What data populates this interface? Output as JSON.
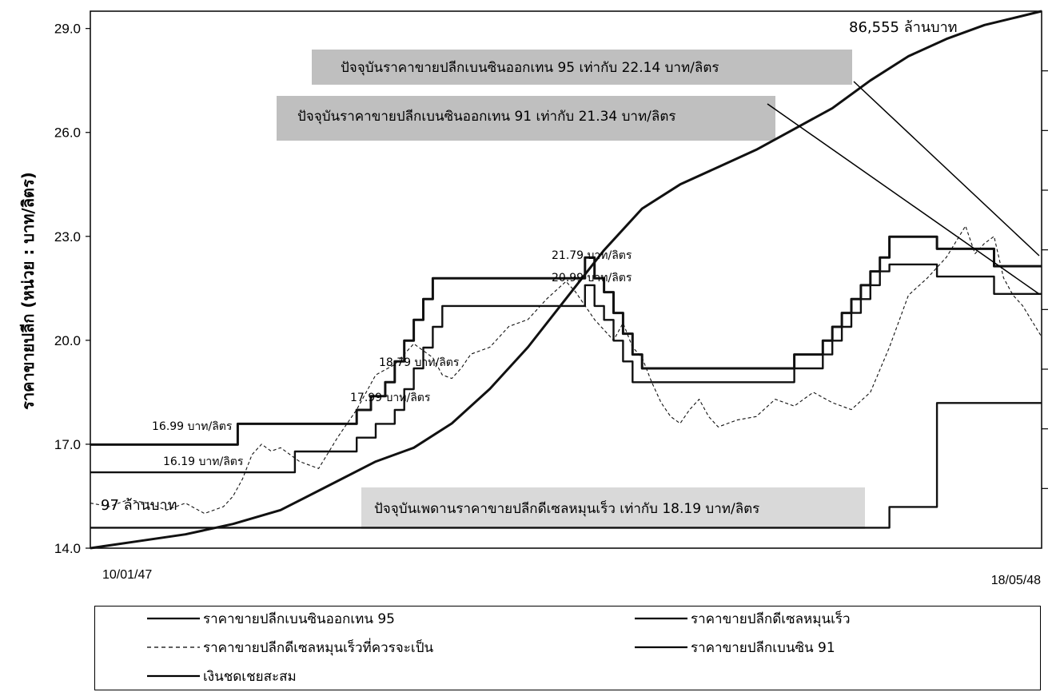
{
  "chart_data": {
    "type": "line",
    "ylabel": "ราคาขายปลีก (หน่วย : บาท/ลิตร)",
    "ylim": [
      14.0,
      29.0
    ],
    "yticks": [
      "14.0",
      "17.0",
      "20.0",
      "23.0",
      "26.0",
      "29.0"
    ],
    "x_start_label": "10/01/47",
    "x_end_label": "18/05/48",
    "x_range": [
      0,
      100
    ],
    "grid": false,
    "legend_position": "bottom",
    "series": [
      {
        "name": "ราคาขายปลีกเบนซินออกเทน 95",
        "style": "solid-thick",
        "x": [
          0,
          15.5,
          15.5,
          28,
          28,
          29.5,
          29.5,
          31,
          31,
          32,
          32,
          33,
          33,
          34,
          34,
          35,
          35,
          36,
          36,
          52,
          52,
          53,
          53,
          54,
          54,
          55,
          55,
          56,
          56,
          57,
          57,
          58,
          58,
          74,
          74,
          77,
          77,
          78,
          78,
          79,
          79,
          80,
          80,
          81,
          81,
          82,
          82,
          83,
          83,
          84,
          84,
          89,
          89,
          95,
          95,
          100
        ],
        "y": [
          16.99,
          16.99,
          17.59,
          17.59,
          17.99,
          17.99,
          18.39,
          18.39,
          18.79,
          18.79,
          19.39,
          19.39,
          19.99,
          19.99,
          20.59,
          20.59,
          21.19,
          21.19,
          21.79,
          21.79,
          22.39,
          22.39,
          21.79,
          21.79,
          21.39,
          21.39,
          20.79,
          20.79,
          20.19,
          20.19,
          19.59,
          19.59,
          19.19,
          19.19,
          19.59,
          19.59,
          19.99,
          19.99,
          20.39,
          20.39,
          20.79,
          20.79,
          21.19,
          21.19,
          21.59,
          21.59,
          21.99,
          21.99,
          22.39,
          22.39,
          22.99,
          22.99,
          22.64,
          22.64,
          22.14,
          22.14
        ]
      },
      {
        "name": "ราคาขายปลีกเบนซิน 91",
        "style": "solid",
        "x": [
          0,
          21.5,
          21.5,
          28,
          28,
          30,
          30,
          32,
          32,
          33,
          33,
          34,
          34,
          35,
          35,
          36,
          36,
          37,
          37,
          52,
          52,
          53,
          53,
          54,
          54,
          55,
          55,
          56,
          56,
          57,
          57,
          74,
          74,
          77,
          77,
          78,
          78,
          79,
          79,
          80,
          80,
          81,
          81,
          82,
          82,
          83,
          83,
          84,
          84,
          89,
          89,
          95,
          95,
          100
        ],
        "y": [
          16.19,
          16.19,
          16.79,
          16.79,
          17.19,
          17.19,
          17.59,
          17.59,
          17.99,
          17.99,
          18.59,
          18.59,
          19.19,
          19.19,
          19.79,
          19.79,
          20.39,
          20.39,
          20.99,
          20.99,
          21.59,
          21.59,
          20.99,
          20.99,
          20.59,
          20.59,
          19.99,
          19.99,
          19.39,
          19.39,
          18.79,
          18.79,
          19.19,
          19.19,
          19.59,
          19.59,
          19.99,
          19.99,
          20.39,
          20.39,
          20.79,
          20.79,
          21.19,
          21.19,
          21.59,
          21.59,
          21.99,
          21.99,
          22.19,
          22.19,
          21.84,
          21.84,
          21.34,
          21.34
        ]
      },
      {
        "name": "ราคาขายปลีกดีเซลหมุนเร็ว",
        "style": "solid",
        "x": [
          0,
          84,
          84,
          89,
          89,
          100
        ],
        "y": [
          14.59,
          14.59,
          15.19,
          15.19,
          18.19,
          18.19
        ]
      },
      {
        "name": "ราคาขายปลีกดีเซลหมุนเร็วที่ควรจะเป็น",
        "style": "dashed",
        "x": [
          0,
          2,
          4,
          6,
          8,
          10,
          12,
          14,
          15,
          16,
          17,
          18,
          19,
          20,
          22,
          24,
          26,
          28,
          30,
          32,
          34,
          36,
          37,
          38,
          39,
          40,
          42,
          44,
          46,
          48,
          50,
          51,
          52,
          53,
          54,
          55,
          56,
          57,
          58,
          59,
          60,
          61,
          62,
          63,
          64,
          65,
          66,
          68,
          70,
          72,
          74,
          76,
          78,
          80,
          82,
          84,
          86,
          88,
          90,
          92,
          93,
          94,
          95,
          96,
          97,
          98,
          100
        ],
        "y": [
          15.3,
          15.2,
          15.4,
          15.3,
          15.1,
          15.3,
          15.0,
          15.2,
          15.5,
          16.0,
          16.7,
          17.0,
          16.8,
          16.9,
          16.5,
          16.3,
          17.2,
          18.0,
          19.0,
          19.3,
          19.9,
          19.5,
          19.0,
          18.9,
          19.2,
          19.6,
          19.8,
          20.4,
          20.6,
          21.2,
          21.7,
          21.4,
          21.0,
          20.6,
          20.3,
          20.0,
          20.5,
          19.8,
          19.5,
          18.8,
          18.2,
          17.8,
          17.6,
          18.0,
          18.3,
          17.8,
          17.5,
          17.7,
          17.8,
          18.3,
          18.1,
          18.5,
          18.2,
          18.0,
          18.5,
          19.8,
          21.3,
          21.8,
          22.4,
          23.3,
          22.5,
          22.8,
          23.0,
          21.8,
          21.3,
          21.0,
          20.1
        ]
      },
      {
        "name": "เงินชดเชยสะสม",
        "style": "solid-thick",
        "x": [
          0,
          5,
          10,
          15,
          20,
          25,
          30,
          34,
          38,
          42,
          46,
          50,
          54,
          58,
          62,
          66,
          70,
          74,
          78,
          82,
          86,
          90,
          94,
          97,
          100
        ],
        "y": [
          14.0,
          14.2,
          14.4,
          14.7,
          15.1,
          15.8,
          16.5,
          16.9,
          17.6,
          18.6,
          19.8,
          21.2,
          22.6,
          23.8,
          24.5,
          25.0,
          25.5,
          26.1,
          26.7,
          27.5,
          28.2,
          28.7,
          29.1,
          29.3,
          29.5
        ]
      }
    ],
    "annotations": {
      "compensation_end": "86,555 ล้านบาท",
      "compensation_start": "97 ล้านบาท",
      "b95_current": "ปัจจุบันราคาขายปลีกเบนซินออกเทน 95 เท่ากับ 22.14 บาท/ลิตร",
      "b91_current": "ปัจจุบันราคาขายปลีกเบนซินออกเทน 91 เท่ากับ 21.34 บาท/ลิตร",
      "diesel_current": "ปัจจุบันเพดานราคาขายปลีกดีเซลหมุนเร็ว เท่ากับ 18.19 บาท/ลิตร",
      "p1699": "16.99 บาท/ลิตร",
      "p1619": "16.19 บาท/ลิตร",
      "p1879": "18.79 บาท/ลิตร",
      "p1799": "17.99 บาท/ลิตร",
      "p2179": "21.79 บาท/ลิตร",
      "p2099": "20.99 บาท/ลิตร"
    },
    "legend": [
      {
        "label": "ราคาขายปลีกเบนซินออกเทน 95",
        "style": "solid"
      },
      {
        "label": "ราคาขายปลีกดีเซลหมุนเร็ว",
        "style": "solid"
      },
      {
        "label": "ราคาขายปลีกดีเซลหมุนเร็วที่ควรจะเป็น",
        "style": "dashed"
      },
      {
        "label": "ราคาขายปลีกเบนซิน 91",
        "style": "solid"
      },
      {
        "label": "เงินชดเชยสะสม",
        "style": "solid"
      }
    ]
  },
  "colors": {
    "line": "#111111",
    "callout_bg": "#bfbfbf",
    "frame": "#000000"
  }
}
